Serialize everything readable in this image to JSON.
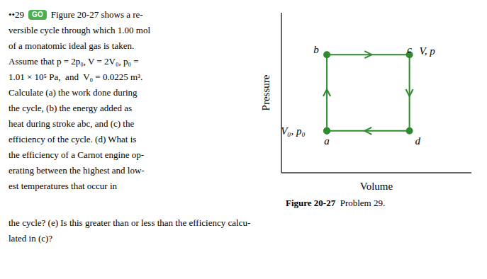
{
  "chart_data": {
    "type": "line",
    "xlabel": "Volume",
    "ylabel": "Pressure",
    "x": [
      1,
      1,
      2,
      2,
      1
    ],
    "values": [
      1,
      2,
      2,
      1,
      1
    ],
    "color": "#2e8b2e",
    "marker": "circle",
    "xlim": [
      0.45,
      2.75
    ],
    "ylim": [
      0.45,
      2.55
    ],
    "tick_labels": false,
    "grid": false,
    "annotations": [
      {
        "text": "a",
        "x": 1,
        "y": 0.87
      },
      {
        "text": "b",
        "x": 0.87,
        "y": 2.07
      },
      {
        "text": "c",
        "x": 2,
        "y": 2.07
      },
      {
        "text": "d",
        "x": 2.1,
        "y": 0.87
      }
    ],
    "corner_label": {
      "text": "V, p",
      "x": 2.12,
      "y": 2.05
    },
    "origin_label": {
      "text": "V₀, p₀",
      "x": 0.74,
      "y": 1.0
    },
    "first_line": [
      {
        "text": "••29"
      },
      {
        "text": "GO",
        "color": "#4caf50"
      },
      {
        "text": "Figure 20-27 shows a re-"
      }
    ],
    "text_lines": [
      "versible cycle through which 1.00 mol",
      "of a monatomic ideal gas is taken.",
      "Assume that p = 2p₀, V = 2V₀, p₀ =",
      "1.01 × 10⁵ Pa,  and  V₀ = 0.0225 m³.",
      "Calculate (a) the work done during",
      "the cycle, (b) the energy added as",
      "heat during stroke abc, and (c) the",
      "efficiency of the cycle. (d) What is",
      "the efficiency of a Carnot engine op-",
      "erating between the highest and low-",
      "est temperatures that occur in"
    ],
    "bottom_text": [
      "the cycle? (e) Is this greater than or less than the efficiency calcu-",
      "lated in (c)?"
    ],
    "caption_bold": "Figure 20-27",
    "caption_normal": "  Problem 29."
  }
}
